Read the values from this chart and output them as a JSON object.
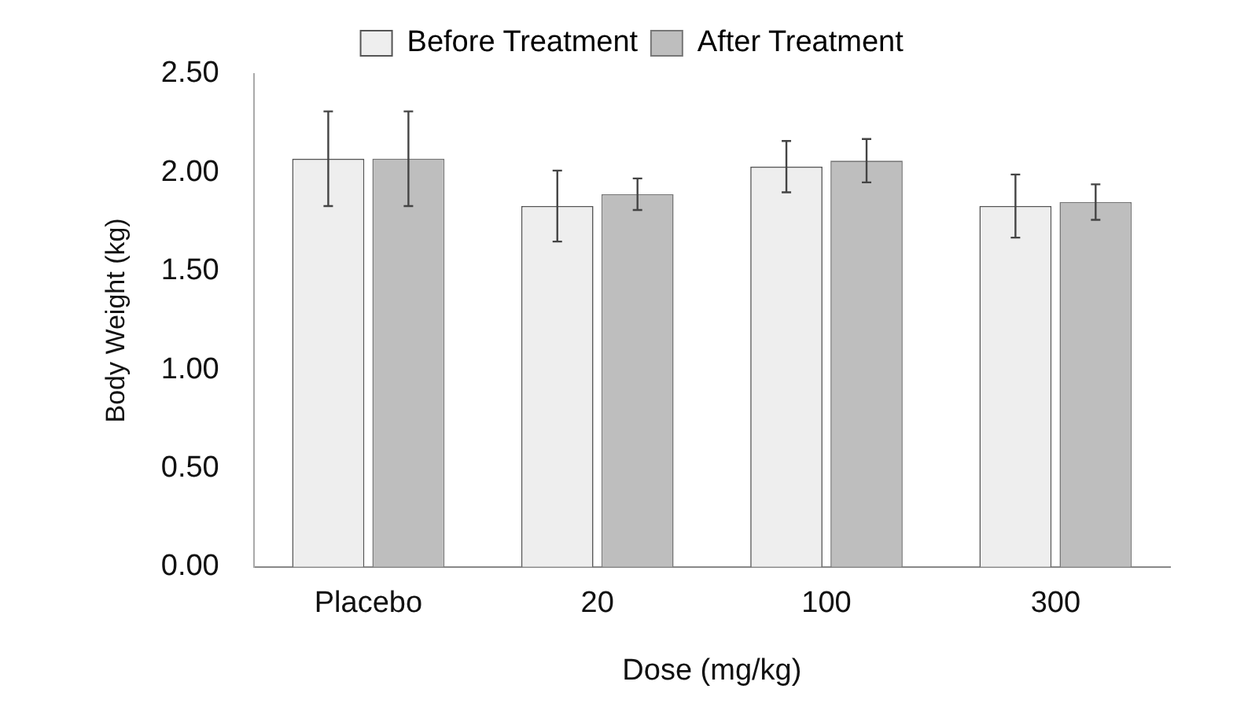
{
  "chart_data": {
    "type": "bar",
    "xlabel": "Dose (mg/kg)",
    "ylabel": "Body Weight (kg)",
    "categories": [
      "Placebo",
      "20",
      "100",
      "300"
    ],
    "series": [
      {
        "name": "Before Treatment",
        "color": "#eeeeee",
        "values": [
          2.07,
          1.83,
          2.03,
          1.83
        ],
        "errors": [
          0.24,
          0.18,
          0.13,
          0.16
        ]
      },
      {
        "name": "After Treatment",
        "color": "#bebebe",
        "values": [
          2.07,
          1.89,
          2.06,
          1.85
        ],
        "errors": [
          0.24,
          0.08,
          0.11,
          0.09
        ]
      }
    ],
    "ylim": [
      0,
      2.5
    ],
    "yticks": [
      {
        "value": 0,
        "label": "0.00"
      },
      {
        "value": 0.5,
        "label": "0.50"
      },
      {
        "value": 1,
        "label": "1.00"
      },
      {
        "value": 1.5,
        "label": "1.50"
      },
      {
        "value": 2,
        "label": "2.00"
      },
      {
        "value": 2.5,
        "label": "2.50"
      }
    ],
    "grid": false,
    "legend": "top"
  }
}
